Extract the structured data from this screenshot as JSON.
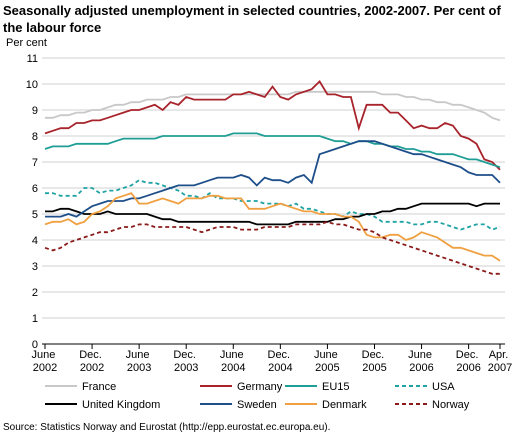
{
  "chart_data": {
    "type": "line",
    "title": "Seasonally adjusted unemployment in selected countries, 2002-2007. Per cent of the labour force",
    "y_label": "Per cent",
    "source": "Source: Statistics Norway and Eurostat (http://epp.eurostat.ec.europa.eu).",
    "categories": [
      "June 2002",
      null,
      null,
      null,
      null,
      null,
      "Dec. 2002",
      null,
      null,
      null,
      null,
      null,
      "June 2003",
      null,
      null,
      null,
      null,
      null,
      "Dec. 2003",
      null,
      null,
      null,
      null,
      null,
      "June 2004",
      null,
      null,
      null,
      null,
      null,
      "Dec. 2004",
      null,
      null,
      null,
      null,
      null,
      "June 2005",
      null,
      null,
      null,
      null,
      null,
      "Dec. 2005",
      null,
      null,
      null,
      null,
      null,
      "June 2006",
      null,
      null,
      null,
      null,
      null,
      "Dec. 2006",
      null,
      null,
      null,
      "Apr. 2007"
    ],
    "ylim": [
      0,
      11
    ],
    "yticks": [
      0,
      1,
      2,
      3,
      4,
      5,
      6,
      7,
      8,
      9,
      10,
      11
    ],
    "grid": true,
    "series": [
      {
        "name": "France",
        "color": "#c8c8c8",
        "dashed": false,
        "values": [
          8.7,
          8.7,
          8.8,
          8.8,
          8.9,
          8.9,
          9.0,
          9.0,
          9.1,
          9.2,
          9.2,
          9.3,
          9.3,
          9.4,
          9.4,
          9.4,
          9.5,
          9.5,
          9.6,
          9.6,
          9.6,
          9.6,
          9.6,
          9.6,
          9.6,
          9.6,
          9.6,
          9.6,
          9.6,
          9.6,
          9.6,
          9.6,
          9.7,
          9.7,
          9.7,
          9.7,
          9.7,
          9.7,
          9.7,
          9.7,
          9.7,
          9.7,
          9.7,
          9.6,
          9.6,
          9.6,
          9.5,
          9.5,
          9.4,
          9.4,
          9.3,
          9.3,
          9.2,
          9.2,
          9.1,
          9.0,
          8.9,
          8.7,
          8.6
        ]
      },
      {
        "name": "Germany",
        "color": "#a8232b",
        "dashed": false,
        "values": [
          8.1,
          8.2,
          8.3,
          8.3,
          8.5,
          8.5,
          8.6,
          8.6,
          8.7,
          8.8,
          8.9,
          9.0,
          9.0,
          9.1,
          9.2,
          9.0,
          9.3,
          9.2,
          9.5,
          9.4,
          9.4,
          9.4,
          9.4,
          9.4,
          9.6,
          9.6,
          9.7,
          9.6,
          9.5,
          9.9,
          9.5,
          9.4,
          9.6,
          9.7,
          9.8,
          10.1,
          9.6,
          9.6,
          9.5,
          9.5,
          8.3,
          9.2,
          9.2,
          9.2,
          8.9,
          8.9,
          8.6,
          8.3,
          8.4,
          8.3,
          8.3,
          8.5,
          8.4,
          8.0,
          7.9,
          7.7,
          7.1,
          7.0,
          6.7
        ]
      },
      {
        "name": "EU15",
        "color": "#1f9e96",
        "dashed": false,
        "values": [
          7.5,
          7.6,
          7.6,
          7.6,
          7.7,
          7.7,
          7.7,
          7.7,
          7.7,
          7.8,
          7.9,
          7.9,
          7.9,
          7.9,
          7.9,
          8.0,
          8.0,
          8.0,
          8.0,
          8.0,
          8.0,
          8.0,
          8.0,
          8.0,
          8.1,
          8.1,
          8.1,
          8.1,
          8.0,
          8.0,
          8.0,
          8.0,
          8.0,
          8.0,
          8.0,
          8.0,
          7.9,
          7.8,
          7.8,
          7.7,
          7.8,
          7.8,
          7.7,
          7.7,
          7.6,
          7.6,
          7.5,
          7.5,
          7.4,
          7.4,
          7.3,
          7.3,
          7.3,
          7.2,
          7.1,
          7.1,
          7.0,
          6.9,
          6.8
        ]
      },
      {
        "name": "USA",
        "color": "#1fa3a3",
        "dashed": true,
        "values": [
          5.8,
          5.8,
          5.7,
          5.7,
          5.7,
          6.0,
          6.0,
          5.8,
          5.9,
          5.9,
          6.0,
          6.1,
          6.3,
          6.2,
          6.2,
          6.1,
          6.0,
          5.9,
          5.7,
          5.7,
          5.6,
          5.8,
          5.6,
          5.6,
          5.6,
          5.5,
          5.5,
          5.5,
          5.4,
          5.4,
          5.4,
          5.3,
          5.4,
          5.2,
          5.2,
          5.1,
          5.0,
          5.0,
          4.9,
          5.1,
          5.0,
          5.0,
          4.9,
          4.7,
          4.7,
          4.7,
          4.7,
          4.6,
          4.6,
          4.7,
          4.7,
          4.6,
          4.5,
          4.4,
          4.5,
          4.6,
          4.6,
          4.4,
          4.5
        ]
      },
      {
        "name": "United Kingdom",
        "color": "#000000",
        "dashed": false,
        "values": [
          5.1,
          5.1,
          5.2,
          5.2,
          5.1,
          5.0,
          5.0,
          5.0,
          5.1,
          5.0,
          5.0,
          5.0,
          5.0,
          5.0,
          4.9,
          4.8,
          4.8,
          4.7,
          4.7,
          4.7,
          4.7,
          4.7,
          4.7,
          4.7,
          4.7,
          4.7,
          4.7,
          4.6,
          4.6,
          4.6,
          4.6,
          4.6,
          4.7,
          4.7,
          4.7,
          4.7,
          4.7,
          4.8,
          4.8,
          4.9,
          4.9,
          5.0,
          5.0,
          5.1,
          5.1,
          5.2,
          5.2,
          5.3,
          5.4,
          5.4,
          5.4,
          5.4,
          5.4,
          5.4,
          5.4,
          5.3,
          5.4,
          5.4,
          5.4
        ]
      },
      {
        "name": "Sweden",
        "color": "#1e4f8a",
        "dashed": false,
        "values": [
          4.9,
          4.9,
          4.9,
          5.0,
          4.9,
          5.1,
          5.3,
          5.4,
          5.5,
          5.5,
          5.5,
          5.6,
          5.6,
          5.7,
          5.8,
          5.9,
          6.0,
          6.1,
          6.1,
          6.1,
          6.2,
          6.3,
          6.4,
          6.4,
          6.4,
          6.5,
          6.4,
          6.1,
          6.4,
          6.3,
          6.3,
          6.2,
          6.4,
          6.5,
          6.2,
          7.3,
          7.4,
          7.5,
          7.6,
          7.7,
          7.8,
          7.8,
          7.8,
          7.7,
          7.6,
          7.5,
          7.4,
          7.3,
          7.3,
          7.2,
          7.1,
          7.0,
          6.9,
          6.8,
          6.6,
          6.5,
          6.5,
          6.5,
          6.2
        ]
      },
      {
        "name": "Denmark",
        "color": "#f0a040",
        "dashed": false,
        "values": [
          4.6,
          4.7,
          4.7,
          4.8,
          4.6,
          4.7,
          5.0,
          5.1,
          5.3,
          5.6,
          5.7,
          5.8,
          5.4,
          5.4,
          5.5,
          5.6,
          5.5,
          5.4,
          5.6,
          5.6,
          5.6,
          5.7,
          5.7,
          5.6,
          5.6,
          5.6,
          5.2,
          5.2,
          5.2,
          5.3,
          5.4,
          5.3,
          5.2,
          5.1,
          5.1,
          5.0,
          5.0,
          5.0,
          4.9,
          4.9,
          4.7,
          4.2,
          4.1,
          4.1,
          4.2,
          4.2,
          4.0,
          4.1,
          4.3,
          4.2,
          4.1,
          3.9,
          3.7,
          3.7,
          3.6,
          3.5,
          3.4,
          3.4,
          3.2
        ]
      },
      {
        "name": "Norway",
        "color": "#8b1a1a",
        "dashed": true,
        "values": [
          3.7,
          3.6,
          3.7,
          3.9,
          4.0,
          4.1,
          4.2,
          4.3,
          4.3,
          4.4,
          4.5,
          4.5,
          4.6,
          4.6,
          4.5,
          4.5,
          4.5,
          4.5,
          4.5,
          4.4,
          4.3,
          4.4,
          4.5,
          4.5,
          4.5,
          4.4,
          4.4,
          4.4,
          4.5,
          4.5,
          4.5,
          4.5,
          4.6,
          4.6,
          4.6,
          4.6,
          4.7,
          4.6,
          4.6,
          4.5,
          4.4,
          4.4,
          4.3,
          4.1,
          4.0,
          3.9,
          3.8,
          3.7,
          3.6,
          3.5,
          3.4,
          3.3,
          3.2,
          3.1,
          3.0,
          2.9,
          2.8,
          2.7,
          2.7
        ]
      }
    ]
  }
}
